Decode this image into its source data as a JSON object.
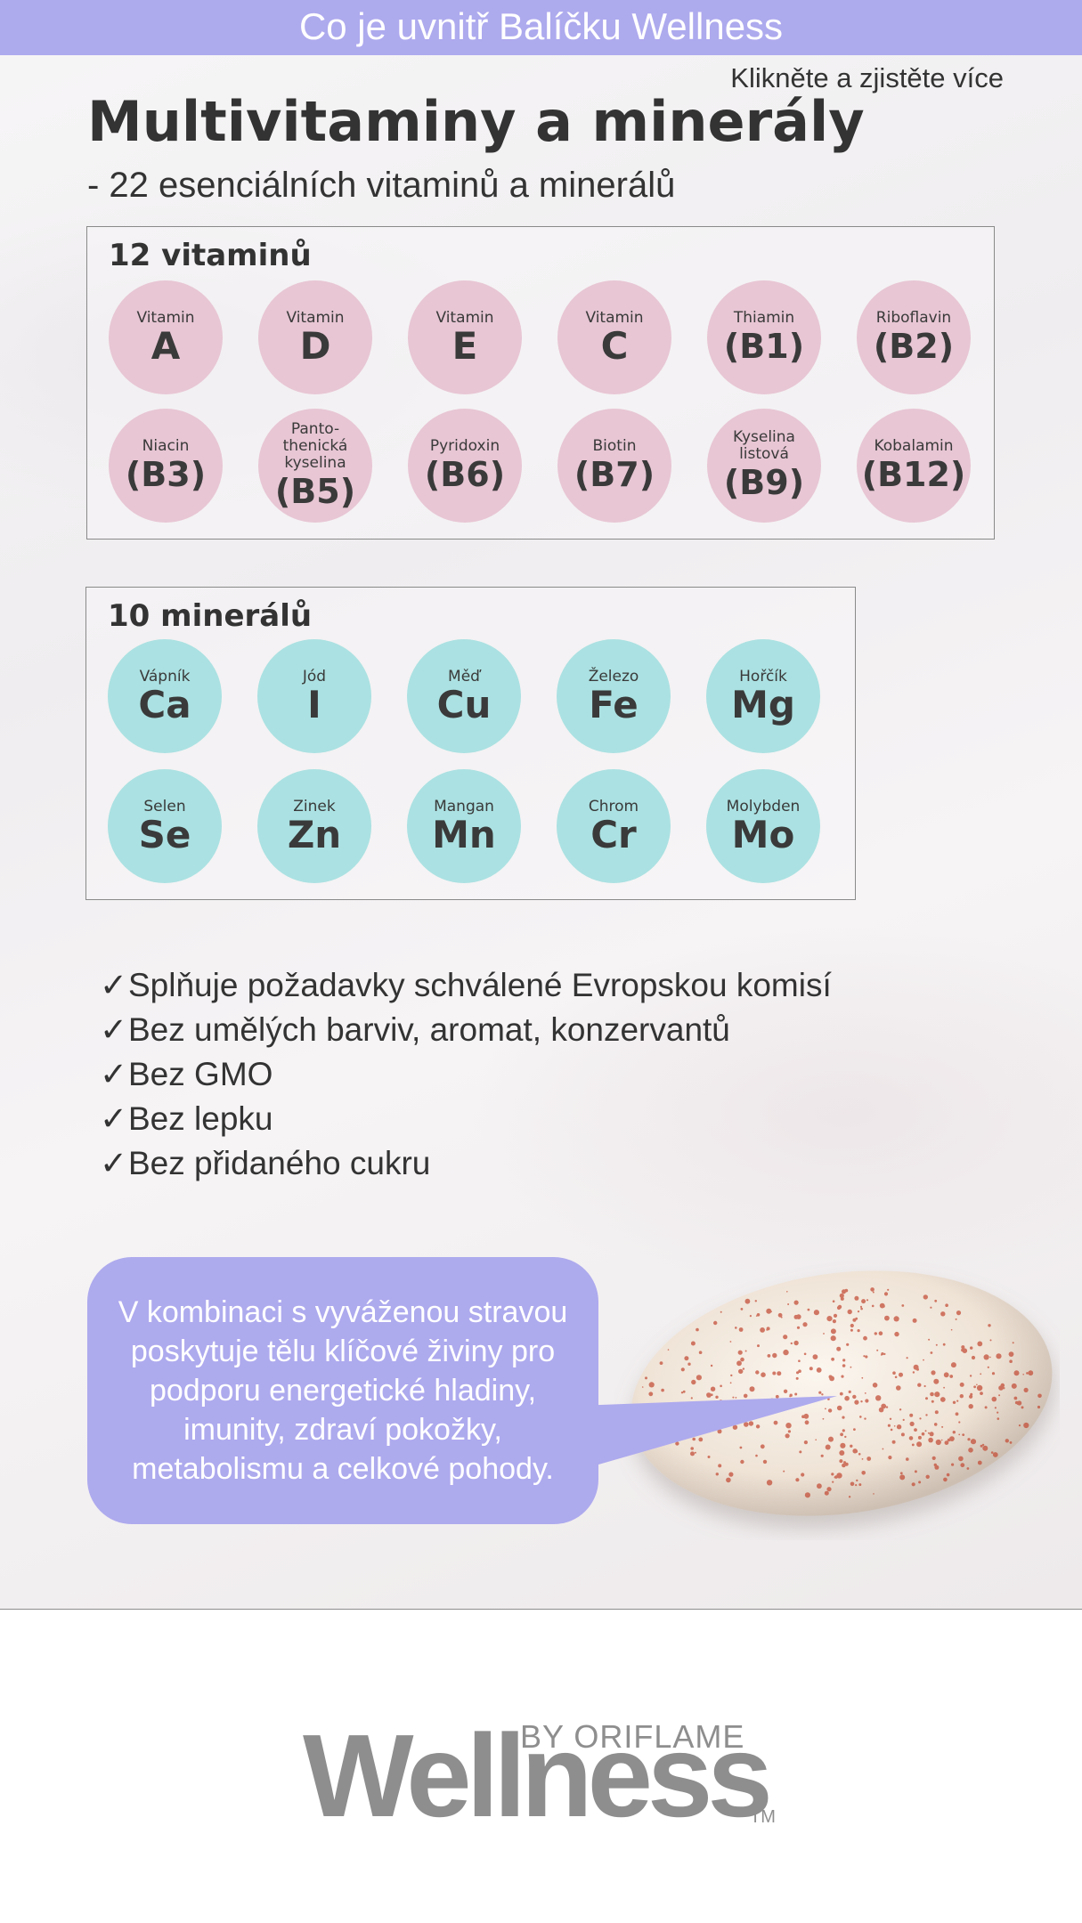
{
  "header": {
    "title": "Co je uvnitř Balíčku Wellness"
  },
  "learn_more_link": "Klikněte a zjistěte více",
  "page_title": "Multivitaminy a minerály",
  "subtitle": "- 22 esenciálních vitaminů a minerálů",
  "vitamins": {
    "title": "12 vitaminů",
    "items": [
      {
        "small": "Vitamin",
        "big": "A"
      },
      {
        "small": "Vitamin",
        "big": "D"
      },
      {
        "small": "Vitamin",
        "big": "E"
      },
      {
        "small": "Vitamin",
        "big": "C"
      },
      {
        "small": "Thiamin",
        "big": "(B1)"
      },
      {
        "small": "Riboflavin",
        "big": "(B2)"
      },
      {
        "small": "Niacin",
        "big": "(B3)"
      },
      {
        "small": "Panto-\nthenická\nkyselina",
        "big": "(B5)"
      },
      {
        "small": "Pyridoxin",
        "big": "(B6)"
      },
      {
        "small": "Biotin",
        "big": "(B7)"
      },
      {
        "small": "Kyselina\nlistová",
        "big": "(B9)"
      },
      {
        "small": "Kobalamin",
        "big": "(B12)"
      }
    ]
  },
  "minerals": {
    "title": "10 minerálů",
    "items": [
      {
        "small": "Vápník",
        "big": "Ca"
      },
      {
        "small": "Jód",
        "big": "I"
      },
      {
        "small": "Měď",
        "big": "Cu"
      },
      {
        "small": "Železo",
        "big": "Fe"
      },
      {
        "small": "Hořčík",
        "big": "Mg"
      },
      {
        "small": "Selen",
        "big": "Se"
      },
      {
        "small": "Zinek",
        "big": "Zn"
      },
      {
        "small": "Mangan",
        "big": "Mn"
      },
      {
        "small": "Chrom",
        "big": "Cr"
      },
      {
        "small": "Molybden",
        "big": "Mo"
      }
    ]
  },
  "checklist": {
    "tick": "✓",
    "items": [
      "Splňuje požadavky schválené Evropskou komisí",
      "Bez umělých barviv, aromat, konzervantů",
      "Bez GMO",
      "Bez lepku",
      "Bez přidaného cukru"
    ]
  },
  "bubble_text": "V kombinaci s vyváženou stravou poskytuje tělu klíčové živiny pro podporu energetické hladiny, imunity, zdraví pokožky, metabolismu a celkové pohody.",
  "logo": {
    "by": "BY ORIFLAME",
    "word": "Wellness",
    "tm": "TM"
  },
  "colors": {
    "accent": "#aeaaee",
    "vitamin_circle": "#e8c6d4",
    "mineral_circle": "#abe1e2",
    "logo_gray": "#8e8e8e"
  }
}
